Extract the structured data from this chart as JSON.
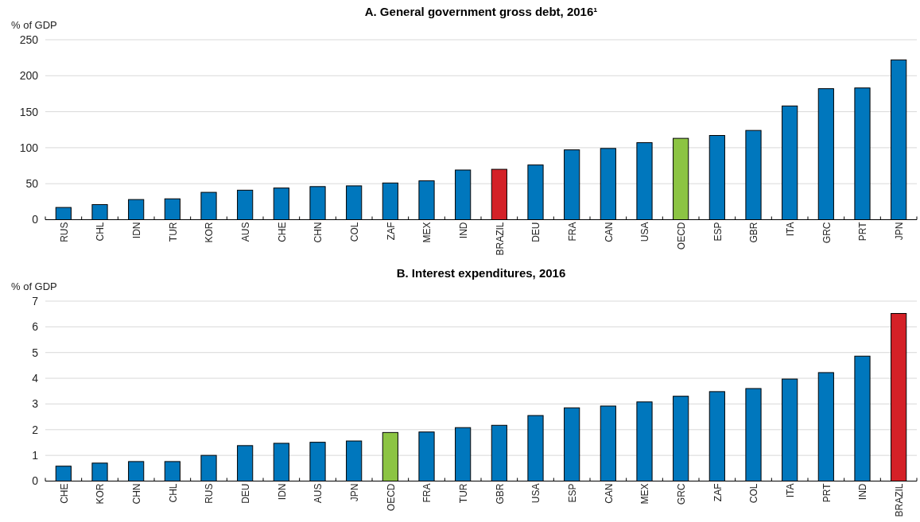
{
  "chart_data": [
    {
      "type": "bar",
      "title": "A. General government gross debt, 2016¹",
      "ylabel": "% of GDP",
      "categories": [
        "RUS",
        "CHL",
        "IDN",
        "TUR",
        "KOR",
        "AUS",
        "CHE",
        "CHN",
        "COL",
        "ZAF",
        "MEX",
        "IND",
        "BRAZIL",
        "DEU",
        "FRA",
        "CAN",
        "USA",
        "OECD",
        "ESP",
        "GBR",
        "ITA",
        "GRC",
        "PRT",
        "JPN"
      ],
      "values": [
        17,
        21,
        28,
        29,
        38,
        41,
        44,
        46,
        47,
        51,
        54,
        69,
        70,
        76,
        97,
        99,
        107,
        113,
        117,
        124,
        158,
        182,
        183,
        222
      ],
      "colors": [
        "#0077bd",
        "#0077bd",
        "#0077bd",
        "#0077bd",
        "#0077bd",
        "#0077bd",
        "#0077bd",
        "#0077bd",
        "#0077bd",
        "#0077bd",
        "#0077bd",
        "#0077bd",
        "#d42127",
        "#0077bd",
        "#0077bd",
        "#0077bd",
        "#0077bd",
        "#8cc443",
        "#0077bd",
        "#0077bd",
        "#0077bd",
        "#0077bd",
        "#0077bd",
        "#0077bd"
      ],
      "ylim": [
        0,
        250
      ],
      "yticks": [
        0,
        50,
        100,
        150,
        200,
        250
      ],
      "grid": "y"
    },
    {
      "type": "bar",
      "title": "B. Interest expenditures, 2016",
      "ylabel": "% of GDP",
      "categories": [
        "CHE",
        "KOR",
        "CHN",
        "CHL",
        "RUS",
        "DEU",
        "IDN",
        "AUS",
        "JPN",
        "OECD",
        "FRA",
        "TUR",
        "GBR",
        "USA",
        "ESP",
        "CAN",
        "MEX",
        "GRC",
        "ZAF",
        "COL",
        "ITA",
        "PRT",
        "IND",
        "BRAZIL"
      ],
      "values": [
        0.58,
        0.7,
        0.76,
        0.76,
        1.0,
        1.38,
        1.47,
        1.51,
        1.56,
        1.89,
        1.91,
        2.08,
        2.17,
        2.55,
        2.85,
        2.92,
        3.08,
        3.3,
        3.48,
        3.6,
        3.97,
        4.22,
        4.86,
        6.52
      ],
      "colors": [
        "#0077bd",
        "#0077bd",
        "#0077bd",
        "#0077bd",
        "#0077bd",
        "#0077bd",
        "#0077bd",
        "#0077bd",
        "#0077bd",
        "#8cc443",
        "#0077bd",
        "#0077bd",
        "#0077bd",
        "#0077bd",
        "#0077bd",
        "#0077bd",
        "#0077bd",
        "#0077bd",
        "#0077bd",
        "#0077bd",
        "#0077bd",
        "#0077bd",
        "#0077bd",
        "#d42127"
      ],
      "ylim": [
        0,
        7
      ],
      "yticks": [
        0,
        1,
        2,
        3,
        4,
        5,
        6,
        7
      ],
      "grid": "y"
    }
  ]
}
